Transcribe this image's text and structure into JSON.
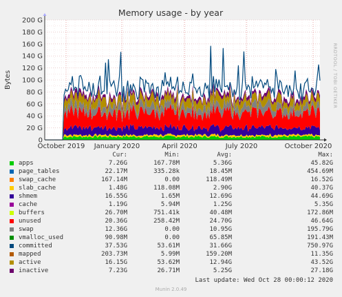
{
  "chart_data": {
    "type": "area",
    "title": "Memory usage - by year",
    "ylabel": "Bytes",
    "side_label": "RRDTOOL / TOBI OETIKER",
    "ylim": [
      0,
      200
    ],
    "y_unit": "G",
    "y_ticks": [
      "0",
      "20 G",
      "40 G",
      "60 G",
      "80 G",
      "100 G",
      "120 G",
      "140 G",
      "160 G",
      "180 G",
      "200 G"
    ],
    "x_labels": [
      "October 2019",
      "January 2020",
      "April 2020",
      "July 2020",
      "October 2020"
    ],
    "grid": true,
    "legend_columns": [
      "Cur:",
      "Min:",
      "Avg:",
      "Max:"
    ],
    "series": [
      {
        "name": "apps",
        "color": "#00cc00",
        "cur": "7.26G",
        "min": "167.78M",
        "avg": "5.36G",
        "max": "45.82G"
      },
      {
        "name": "page_tables",
        "color": "#0066b3",
        "cur": "22.17M",
        "min": "335.28k",
        "avg": "18.45M",
        "max": "454.69M"
      },
      {
        "name": "swap_cache",
        "color": "#ff8000",
        "cur": "167.14M",
        "min": "0.00",
        "avg": "118.49M",
        "max": "16.52G"
      },
      {
        "name": "slab_cache",
        "color": "#ffcc00",
        "cur": "1.48G",
        "min": "118.08M",
        "avg": "2.90G",
        "max": "40.37G"
      },
      {
        "name": "shmem",
        "color": "#330099",
        "cur": "16.55G",
        "min": "1.65M",
        "avg": "12.69G",
        "max": "44.69G"
      },
      {
        "name": "cache",
        "color": "#990099",
        "cur": "1.19G",
        "min": "5.94M",
        "avg": "1.25G",
        "max": "5.35G"
      },
      {
        "name": "buffers",
        "color": "#ccff00",
        "cur": "26.70M",
        "min": "751.41k",
        "avg": "40.48M",
        "max": "172.86M"
      },
      {
        "name": "unused",
        "color": "#ff0000",
        "cur": "20.36G",
        "min": "258.42M",
        "avg": "24.70G",
        "max": "46.64G"
      },
      {
        "name": "swap",
        "color": "#808080",
        "cur": "12.36G",
        "min": "0.00",
        "avg": "10.95G",
        "max": "195.79G"
      },
      {
        "name": "vmalloc_used",
        "color": "#008f00",
        "cur": "90.98M",
        "min": "0.00",
        "avg": "65.85M",
        "max": "191.43M"
      },
      {
        "name": "committed",
        "color": "#00487d",
        "cur": "37.53G",
        "min": "53.61M",
        "avg": "31.66G",
        "max": "750.97G"
      },
      {
        "name": "mapped",
        "color": "#b35a00",
        "cur": "203.73M",
        "min": "5.99M",
        "avg": "159.20M",
        "max": "11.35G"
      },
      {
        "name": "active",
        "color": "#b38f00",
        "cur": "16.15G",
        "min": "53.62M",
        "avg": "12.94G",
        "max": "43.52G"
      },
      {
        "name": "inactive",
        "color": "#6b006b",
        "cur": "7.23G",
        "min": "26.71M",
        "avg": "5.25G",
        "max": "27.18G"
      }
    ]
  },
  "footer": {
    "last_update": "Last update: Wed Oct 28 00:00:12 2020",
    "version": "Munin 2.0.49"
  }
}
